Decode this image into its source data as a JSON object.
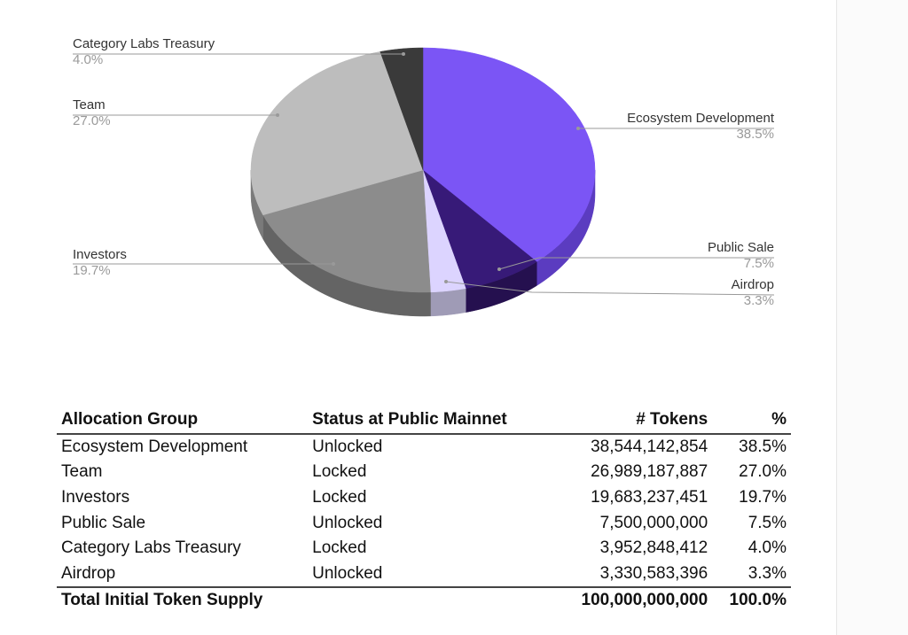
{
  "chart_data": {
    "type": "pie",
    "style": "3d",
    "start_angle": "top, clockwise",
    "slices": [
      {
        "label": "Ecosystem Development",
        "value": 38.5,
        "pct_label": "38.5%",
        "color": "#7b55f5",
        "side_color": "#5b3cc0"
      },
      {
        "label": "Public Sale",
        "value": 7.5,
        "pct_label": "7.5%",
        "color": "#371a78",
        "side_color": "#25104f"
      },
      {
        "label": "Airdrop",
        "value": 3.3,
        "pct_label": "3.3%",
        "color": "#dcd4ff",
        "side_color": "#9f9bb6"
      },
      {
        "label": "Investors",
        "value": 19.7,
        "pct_label": "19.7%",
        "color": "#8c8c8c",
        "side_color": "#646464"
      },
      {
        "label": "Team",
        "value": 27.0,
        "pct_label": "27.0%",
        "color": "#bdbdbd",
        "side_color": "#7a7a7a"
      },
      {
        "label": "Category Labs Treasury",
        "value": 4.0,
        "pct_label": "4.0%",
        "color": "#3a3a3a",
        "side_color": "#262626"
      }
    ]
  },
  "table": {
    "headers": [
      "Allocation Group",
      "Status at Public Mainnet",
      "# Tokens",
      "%"
    ],
    "rows": [
      [
        "Ecosystem Development",
        "Unlocked",
        "38,544,142,854",
        "38.5%"
      ],
      [
        "Team",
        "Locked",
        "26,989,187,887",
        "27.0%"
      ],
      [
        "Investors",
        "Locked",
        "19,683,237,451",
        "19.7%"
      ],
      [
        "Public Sale",
        "Unlocked",
        "7,500,000,000",
        "7.5%"
      ],
      [
        "Category Labs Treasury",
        "Locked",
        "3,952,848,412",
        "4.0%"
      ],
      [
        "Airdrop",
        "Unlocked",
        "3,330,583,396",
        "3.3%"
      ]
    ],
    "total": [
      "Total Initial Token Supply",
      "",
      "100,000,000,000",
      "100.0%"
    ]
  }
}
